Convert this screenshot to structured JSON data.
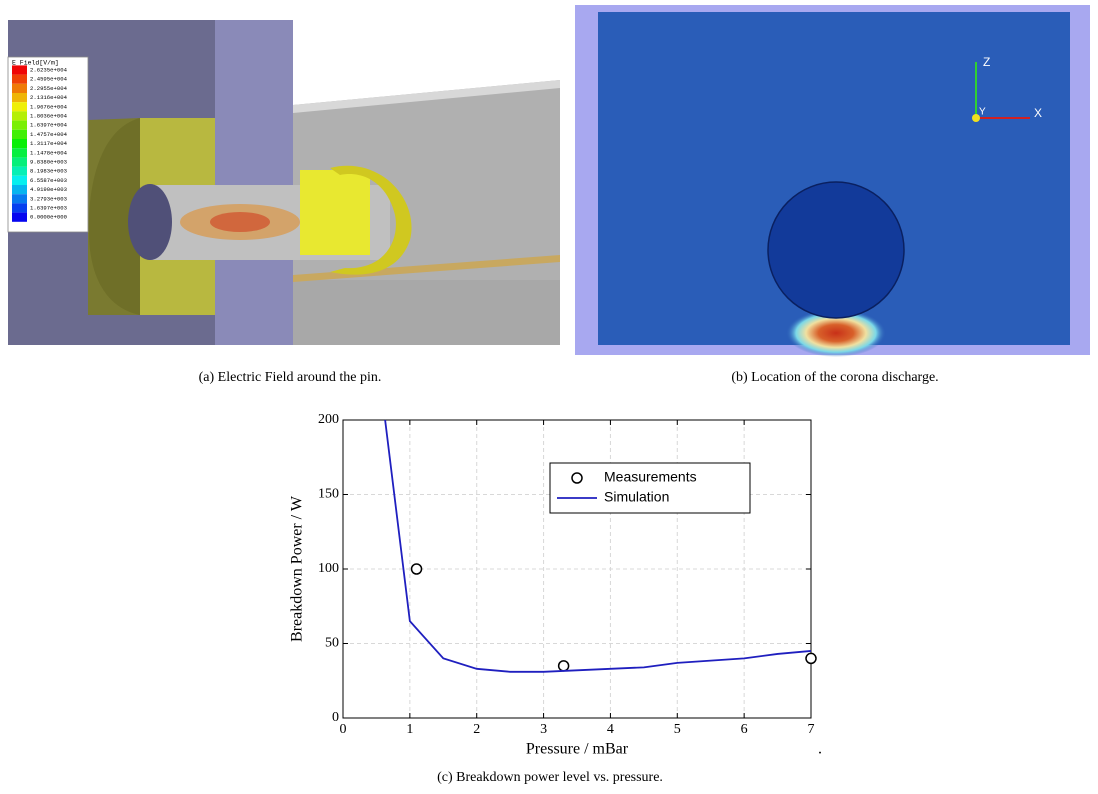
{
  "panel_a": {
    "legend_title": "E Field[V/m]",
    "legend_values": [
      "2.6235e+004",
      "2.4595e+004",
      "2.2955e+004",
      "2.1316e+004",
      "1.9676e+004",
      "1.8036e+004",
      "1.6397e+004",
      "1.4757e+004",
      "1.3117e+004",
      "1.1478e+004",
      "9.8380e+003",
      "8.1983e+003",
      "6.5587e+003",
      "4.9190e+003",
      "3.2793e+003",
      "1.6397e+003",
      "0.0000e+000"
    ],
    "caption": "(a) Electric Field around the pin."
  },
  "panel_b": {
    "axis_labels": [
      "Z",
      "Y",
      "X"
    ],
    "caption": "(b) Location of the corona discharge."
  },
  "chart_data": {
    "type": "scatter",
    "x_label": "Pressure / mBar",
    "y_label": "Breakdown Power / W",
    "caption": "(c) Breakdown power level vs. pressure.",
    "annotation": ".",
    "xlim": [
      0,
      7
    ],
    "xticks": [
      0,
      1,
      2,
      3,
      4,
      5,
      6,
      7
    ],
    "ylim": [
      0,
      200
    ],
    "yticks": [
      0,
      50,
      100,
      150,
      200
    ],
    "grid": true,
    "series": [
      {
        "name": "Measurements",
        "style": "markers",
        "color": "#000000",
        "x": [
          1.1,
          3.3,
          7
        ],
        "values": [
          100,
          35,
          40
        ]
      },
      {
        "name": "Simulation",
        "style": "line",
        "color": "#1f1fbf",
        "x": [
          0.63,
          1,
          1.5,
          2,
          2.5,
          3,
          3.5,
          4,
          4.5,
          5,
          5.5,
          6,
          6.5,
          7
        ],
        "values": [
          200,
          65,
          40,
          33,
          31,
          31,
          32,
          33,
          34,
          37,
          38.5,
          40,
          43,
          45
        ]
      }
    ]
  }
}
